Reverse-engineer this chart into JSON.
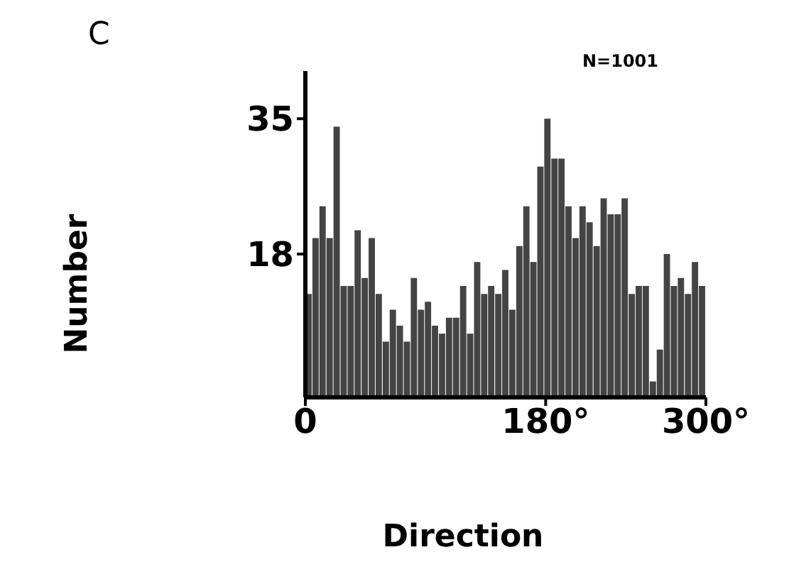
{
  "chart_data": {
    "type": "histogram",
    "title": "C",
    "xlabel": "Direction",
    "ylabel": "Number",
    "annotations": [
      "N=1001"
    ],
    "bins": [
      0,
      5.3,
      10.5,
      15.8,
      21.1,
      26.3,
      31.6,
      36.8,
      42.1,
      47.4,
      52.6,
      57.9,
      63.2,
      68.4,
      73.7,
      78.9,
      84.2,
      89.5,
      94.7,
      100,
      105.3,
      110.5,
      115.8,
      121.1,
      126.3,
      131.6,
      136.8,
      142.1,
      147.4,
      152.6,
      157.9,
      163.2,
      168.4,
      173.7,
      178.9,
      184.2,
      189.5,
      194.7,
      200,
      205.3,
      210.5,
      215.8,
      221.1,
      226.3,
      231.6,
      236.8,
      242.1,
      247.4,
      252.6,
      257.9,
      263.2,
      268.4,
      273.7,
      278.9,
      284.2,
      289.5,
      294.7,
      300
    ],
    "values": [
      13,
      20,
      24,
      20,
      34,
      14,
      14,
      21,
      15,
      20,
      13,
      7,
      11,
      9,
      7,
      15,
      11,
      12,
      9,
      8,
      10,
      10,
      14,
      8,
      17,
      13,
      14,
      13,
      16,
      11,
      19,
      24,
      17,
      29,
      35,
      30,
      30,
      24,
      20,
      24,
      22,
      19,
      25,
      23,
      23,
      25,
      13,
      14,
      14,
      2,
      6,
      18,
      14,
      15,
      13,
      17,
      14
    ],
    "color": "#444444",
    "xlim": [
      0,
      300
    ],
    "xticks": [
      0,
      {
        "value": 180,
        "label": "180°"
      },
      {
        "value": 300,
        "label": "300°"
      }
    ],
    "ylim": [
      0,
      41
    ],
    "yticks": [
      18,
      35
    ],
    "grid": false
  }
}
